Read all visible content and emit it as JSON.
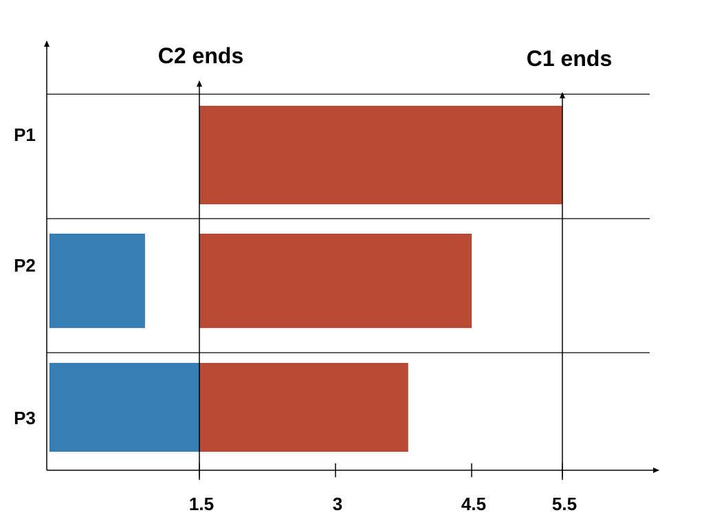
{
  "chart_data": {
    "type": "bar",
    "orientation": "horizontal-gantt",
    "rows": [
      "P1",
      "P2",
      "P3"
    ],
    "series": [
      {
        "color": "#3780b5",
        "bars": [
          {
            "row": "P2",
            "start": 0,
            "end": 0.9
          },
          {
            "row": "P3",
            "start": 0,
            "end": 1.5
          }
        ]
      },
      {
        "color": "#b84a36",
        "bars": [
          {
            "row": "P1",
            "start": 1.5,
            "end": 5.5
          },
          {
            "row": "P2",
            "start": 1.5,
            "end": 4.5
          },
          {
            "row": "P3",
            "start": 1.5,
            "end": 3.8
          }
        ]
      }
    ],
    "x_ticks": [
      {
        "value": 1.5,
        "label": "1.5"
      },
      {
        "value": 3,
        "label": "3"
      },
      {
        "value": 4.5,
        "label": "4.5"
      },
      {
        "value": 5.5,
        "label": "5.5"
      }
    ],
    "xlim": [
      0,
      6.45
    ],
    "markers": [
      {
        "value": 1.5,
        "label": "C2 ends"
      },
      {
        "value": 5.5,
        "label": "C1 ends"
      }
    ],
    "title": "",
    "xlabel": "",
    "ylabel": "",
    "grid": "row separators only",
    "legend": "none"
  }
}
